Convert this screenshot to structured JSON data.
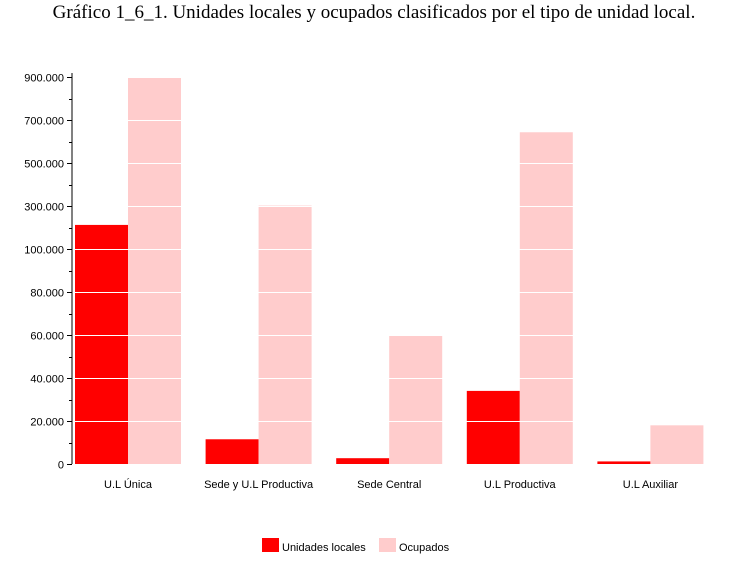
{
  "chart_data": {
    "type": "bar",
    "title": "Gráfico 1_6_1. Unidades locales y ocupados clasificados por el tipo de unidad local.",
    "xlabel": "",
    "ylabel": "",
    "categories": [
      "U.L Única",
      "Sede y U.L Productiva",
      "Sede Central",
      "U.L Productiva",
      "U.L Auxiliar"
    ],
    "y_tick_labels": [
      "0",
      "20.000",
      "40.000",
      "60.000",
      "80.000",
      "100.000",
      "300.000",
      "500.000",
      "700.000",
      "900.000"
    ],
    "y_tick_values": [
      0,
      20000,
      40000,
      60000,
      80000,
      100000,
      300000,
      500000,
      700000,
      900000
    ],
    "ylim": [
      0,
      900000
    ],
    "axis_break": "piecewise-linear: 0–100.000 then 100.000–900.000 compressed",
    "grid": true,
    "legend_position": "bottom-center",
    "series": [
      {
        "name": "Unidades locales",
        "color": "#ff0000",
        "values": [
          212000,
          11500,
          2700,
          34000,
          1200
        ]
      },
      {
        "name": "Ocupados",
        "color": "#ffcccc",
        "values": [
          900000,
          302000,
          60000,
          643000,
          18000
        ]
      }
    ]
  }
}
